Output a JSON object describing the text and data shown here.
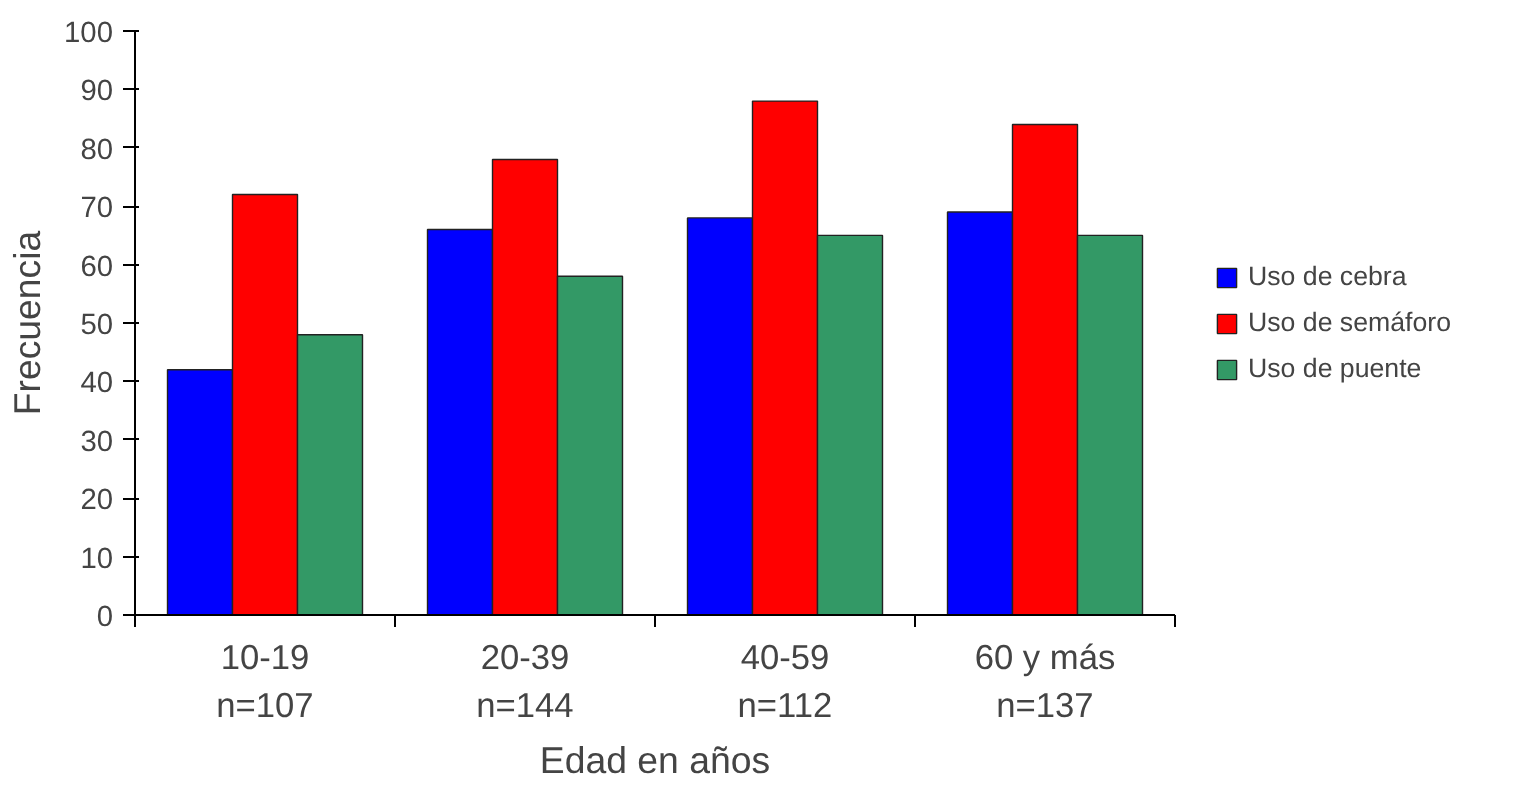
{
  "chart_data": {
    "type": "bar",
    "xlabel": "Edad en años",
    "ylabel": "Frecuencia",
    "categories": [
      "10-19\nn=107",
      "20-39\nn=144",
      "40-59\nn=112",
      "60 y más\nn=137"
    ],
    "series": [
      {
        "name": "Uso de cebra",
        "color": "#0000ff",
        "values": [
          42,
          66,
          68,
          69
        ]
      },
      {
        "name": "Uso de semáforo",
        "color": "#ff0000",
        "values": [
          72,
          78,
          88,
          84
        ]
      },
      {
        "name": "Uso de puente",
        "color": "#339966",
        "values": [
          48,
          58,
          65,
          65
        ]
      }
    ],
    "ylim": [
      0,
      100
    ],
    "yticks": [
      0,
      10,
      20,
      30,
      40,
      50,
      60,
      70,
      80,
      90,
      100
    ],
    "grid": false,
    "legend": "right"
  }
}
